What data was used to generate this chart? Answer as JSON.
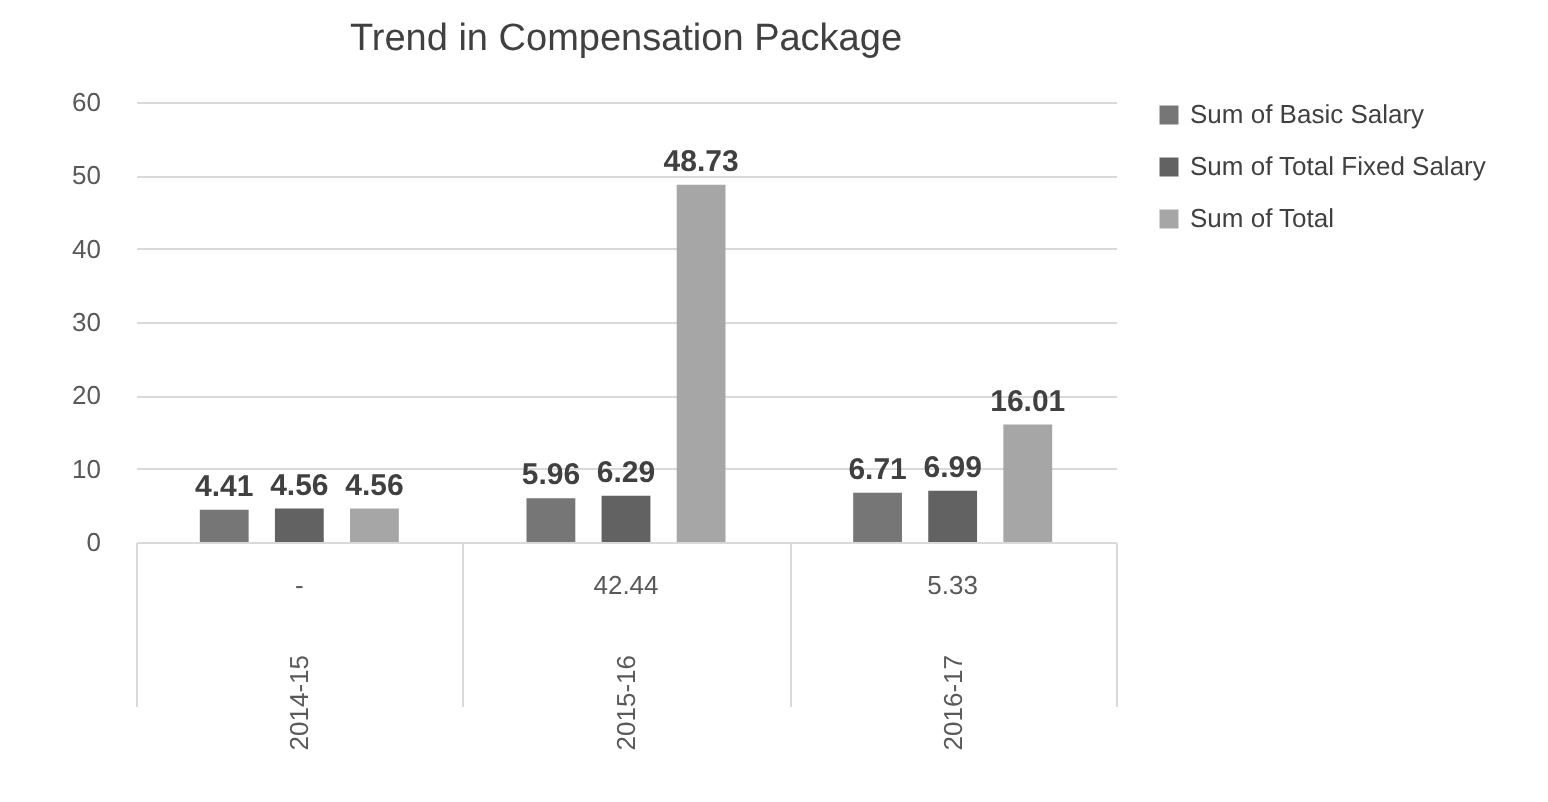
{
  "chart_data": {
    "type": "bar",
    "title": "Trend in Compensation Package",
    "categories": [
      "2014-15",
      "2015-16",
      "2016-17"
    ],
    "series": [
      {
        "name": "Sum of Basic Salary",
        "color": "#767676",
        "values": [
          4.41,
          5.96,
          6.71
        ]
      },
      {
        "name": "Sum of Total Fixed Salary",
        "color": "#626262",
        "values": [
          4.56,
          6.29,
          6.99
        ]
      },
      {
        "name": "Sum of Total",
        "color": "#a6a6a6",
        "values": [
          4.56,
          48.73,
          16.01
        ]
      }
    ],
    "annotations": [
      "-",
      "42.44",
      "5.33"
    ],
    "ylim": [
      0,
      60
    ],
    "yticks": [
      0,
      10,
      20,
      30,
      40,
      50,
      60
    ],
    "grid": "y",
    "legend": "right",
    "data_labels": true
  }
}
